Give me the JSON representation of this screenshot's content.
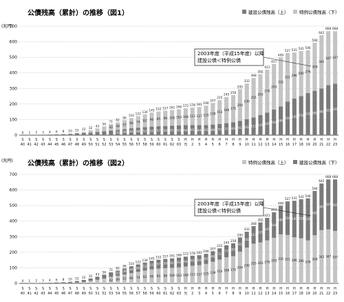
{
  "chart_data": [
    {
      "type": "bar",
      "stacked": true,
      "title": "公債残高（累計）の推移（図1）",
      "unit_label": "(兆円)",
      "ylim": [
        0,
        700
      ],
      "yticks": [
        0,
        100,
        200,
        300,
        400,
        500,
        600,
        700
      ],
      "grid": true,
      "legend_position": "top-right",
      "series_order": "construction-bottom",
      "series": [
        {
          "name": "建設公債残高（上）",
          "color": "#7a7a7a"
        },
        {
          "name": "特例公債残高（下）",
          "color": "#c4c4c4"
        }
      ],
      "callout": [
        "2003年度（平成15年度）以降",
        "建設公債＜特例公債"
      ],
      "categories": [
        "S40",
        "S41",
        "S42",
        "S43",
        "S44",
        "S45",
        "S46",
        "S47",
        "S48",
        "S49",
        "S50",
        "S51",
        "S52",
        "S53",
        "S54",
        "S55",
        "S56",
        "S57",
        "S58",
        "S59",
        "S60",
        "S61",
        "S62",
        "S63",
        "H元",
        "H2",
        "H3",
        "H4",
        "H5",
        "H6",
        "H7",
        "H8",
        "H9",
        "H10",
        "H11",
        "H12",
        "H13",
        "H14",
        "H15",
        "H16",
        "H17",
        "H18",
        "H19",
        "H20",
        "H21",
        "H22",
        "H23"
      ],
      "x_top": [
        "S",
        "S",
        "S",
        "S",
        "S",
        "S",
        "S",
        "S",
        "S",
        "S",
        "S",
        "S",
        "S",
        "S",
        "S",
        "S",
        "S",
        "S",
        "S",
        "S",
        "S",
        "S",
        "S",
        "S",
        "H",
        "H",
        "H",
        "H",
        "H",
        "H",
        "H",
        "H",
        "H",
        "H",
        "H",
        "H",
        "H",
        "H",
        "H",
        "H",
        "H",
        "H",
        "H",
        "H",
        "H",
        "H",
        "H"
      ],
      "x_bottom": [
        "40",
        "41",
        "42",
        "43",
        "44",
        "45",
        "46",
        "47",
        "48",
        "49",
        "50",
        "51",
        "52",
        "53",
        "54",
        "55",
        "56",
        "57",
        "58",
        "59",
        "60",
        "61",
        "62",
        "63",
        "元",
        "2",
        "3",
        "4",
        "5",
        "6",
        "7",
        "8",
        "9",
        "10",
        "11",
        "12",
        "13",
        "14",
        "15",
        "16",
        "17",
        "18",
        "19",
        "20",
        "21",
        "22",
        "23"
      ],
      "totals": [
        0,
        1,
        2,
        3,
        4,
        6,
        8,
        10,
        15,
        22,
        32,
        43,
        56,
        71,
        82,
        96,
        110,
        122,
        134,
        145,
        152,
        157,
        161,
        166,
        172,
        178,
        181,
        190,
        207,
        225,
        245,
        258,
        295,
        332,
        368,
        392,
        421,
        457,
        499,
        527,
        531,
        541,
        546,
        594,
        642,
        668,
        668
      ],
      "construction": [
        0,
        1,
        2,
        3,
        4,
        5,
        6,
        8,
        12,
        14,
        16,
        20,
        25,
        29,
        33,
        39,
        44,
        48,
        52,
        55,
        57,
        59,
        61,
        63,
        64,
        65,
        64,
        65,
        68,
        72,
        77,
        83,
        91,
        102,
        113,
        129,
        145,
        164,
        184,
        216,
        235,
        251,
        270,
        285,
        300,
        321,
        331
      ],
      "special": [
        0,
        0,
        0,
        0,
        0,
        1,
        2,
        2,
        3,
        8,
        16,
        23,
        31,
        42,
        49,
        57,
        66,
        74,
        82,
        90,
        95,
        98,
        100,
        103,
        108,
        113,
        117,
        125,
        139,
        153,
        168,
        175,
        204,
        230,
        255,
        263,
        276,
        293,
        315,
        311,
        296,
        290,
        276,
        309,
        342,
        347,
        337
      ]
    },
    {
      "type": "bar",
      "stacked": true,
      "title": "公債残高（累計）の推移（図2）",
      "unit_label": "(兆円)",
      "ylim": [
        0,
        700
      ],
      "yticks": [
        0,
        100,
        200,
        300,
        400,
        500,
        600,
        700
      ],
      "grid": true,
      "legend_position": "top-right",
      "series_order": "special-bottom",
      "series": [
        {
          "name": "特例公債残高（上）",
          "color": "#c4c4c4"
        },
        {
          "name": "建設公債残高（下）",
          "color": "#7a7a7a"
        }
      ],
      "callout": [
        "2003年度（平成15年度）以降",
        "建設公債＜特例公債"
      ],
      "categories": [
        "S40",
        "S41",
        "S42",
        "S43",
        "S44",
        "S45",
        "S46",
        "S47",
        "S48",
        "S49",
        "S50",
        "S51",
        "S52",
        "S53",
        "S54",
        "S55",
        "S56",
        "S57",
        "S58",
        "S59",
        "S60",
        "S61",
        "S62",
        "S63",
        "H元",
        "H2",
        "H3",
        "H4",
        "H5",
        "H6",
        "H7",
        "H8",
        "H9",
        "H10",
        "H11",
        "H12",
        "H13",
        "H14",
        "H15",
        "H16",
        "H17",
        "H18",
        "H19",
        "H20",
        "H21",
        "H22",
        "H23"
      ],
      "x_top": [
        "S",
        "S",
        "S",
        "S",
        "S",
        "S",
        "S",
        "S",
        "S",
        "S",
        "S",
        "S",
        "S",
        "S",
        "S",
        "S",
        "S",
        "S",
        "S",
        "S",
        "S",
        "S",
        "S",
        "S",
        "H",
        "H",
        "H",
        "H",
        "H",
        "H",
        "H",
        "H",
        "H",
        "H",
        "H",
        "H",
        "H",
        "H",
        "H",
        "H",
        "H",
        "H",
        "H",
        "H",
        "H",
        "H",
        "H"
      ],
      "x_bottom": [
        "40",
        "41",
        "42",
        "43",
        "44",
        "45",
        "46",
        "47",
        "48",
        "49",
        "50",
        "51",
        "52",
        "53",
        "54",
        "55",
        "56",
        "57",
        "58",
        "59",
        "60",
        "61",
        "62",
        "63",
        "元",
        "2",
        "3",
        "4",
        "5",
        "6",
        "7",
        "8",
        "9",
        "10",
        "11",
        "12",
        "13",
        "14",
        "15",
        "16",
        "17",
        "18",
        "19",
        "20",
        "21",
        "22",
        "23"
      ],
      "totals": [
        0,
        1,
        2,
        3,
        4,
        6,
        8,
        10,
        15,
        22,
        32,
        43,
        56,
        71,
        82,
        96,
        110,
        122,
        134,
        145,
        152,
        157,
        161,
        166,
        172,
        178,
        181,
        190,
        207,
        225,
        245,
        258,
        295,
        332,
        368,
        392,
        421,
        457,
        499,
        527,
        531,
        541,
        546,
        594,
        642,
        668,
        668
      ],
      "construction": [
        0,
        1,
        2,
        3,
        4,
        5,
        6,
        8,
        12,
        14,
        16,
        20,
        25,
        29,
        33,
        39,
        44,
        48,
        52,
        55,
        57,
        59,
        61,
        63,
        64,
        65,
        64,
        65,
        68,
        72,
        77,
        83,
        91,
        102,
        113,
        129,
        145,
        164,
        184,
        216,
        235,
        251,
        270,
        285,
        300,
        321,
        331
      ],
      "special": [
        0,
        0,
        0,
        0,
        0,
        1,
        2,
        2,
        3,
        8,
        16,
        23,
        31,
        42,
        49,
        57,
        66,
        74,
        82,
        90,
        95,
        98,
        100,
        103,
        108,
        113,
        117,
        125,
        139,
        153,
        168,
        175,
        204,
        230,
        255,
        263,
        276,
        293,
        315,
        311,
        296,
        290,
        276,
        309,
        342,
        347,
        337
      ]
    }
  ]
}
